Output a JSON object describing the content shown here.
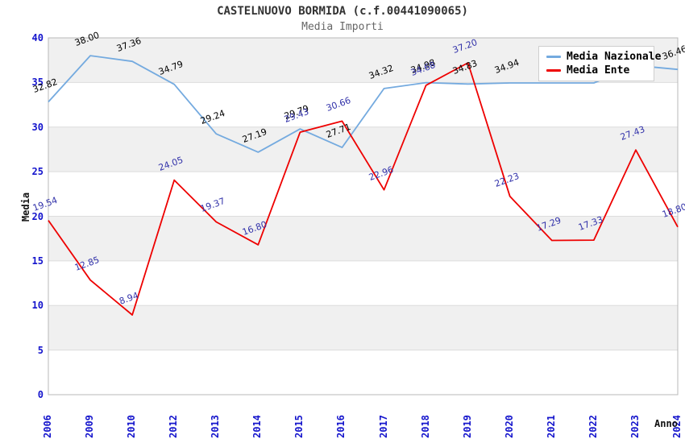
{
  "header": {
    "title": "CASTELNUOVO BORMIDA (c.f.00441090065)",
    "subtitle": "Media Importi"
  },
  "legend": {
    "items": [
      {
        "label": "Media Nazionale",
        "color": "#74aadf"
      },
      {
        "label": "Media Ente",
        "color": "#ee0000"
      }
    ]
  },
  "axes": {
    "y_label": "Media",
    "x_label": "Anno",
    "tick_color": "#1414cc",
    "y_ticks": [
      0,
      5,
      10,
      15,
      20,
      25,
      30,
      35,
      40
    ]
  },
  "colors": {
    "band_gray": "#f0f0f0",
    "band_white": "#ffffff",
    "gridline": "#dcdcdc",
    "plot_border": "#b8b8b8"
  },
  "chart_data": {
    "type": "line",
    "title": "CASTELNUOVO BORMIDA (c.f.00441090065)",
    "subtitle": "Media Importi",
    "xlabel": "Anno",
    "ylabel": "Media",
    "ylim": [
      0,
      40
    ],
    "grid": "horizontal-bands",
    "legend_position": "top-right",
    "categories": [
      "2006",
      "2009",
      "2010",
      "2012",
      "2013",
      "2014",
      "2015",
      "2016",
      "2017",
      "2018",
      "2019",
      "2020",
      "2021",
      "2022",
      "2023",
      "2024"
    ],
    "series": [
      {
        "name": "Media Nazionale",
        "color": "#74aadf",
        "label_color": "#000000",
        "values": [
          32.82,
          38.0,
          37.36,
          34.79,
          29.24,
          27.19,
          29.79,
          27.71,
          34.32,
          34.98,
          34.83,
          34.94,
          34.94,
          34.94,
          36.9,
          36.46
        ],
        "labels": [
          "32.82",
          "38.00",
          "37.36",
          "34.79",
          "29.24",
          "27.19",
          "29.79",
          "27.71",
          "34.32",
          "34.98",
          "34.83",
          "34.94",
          null,
          null,
          null,
          "36.46"
        ]
      },
      {
        "name": "Media Ente",
        "color": "#ee0000",
        "label_color": "#3333aa",
        "values": [
          19.54,
          12.85,
          8.94,
          24.05,
          19.37,
          16.8,
          29.43,
          30.66,
          22.96,
          34.68,
          37.2,
          22.23,
          17.29,
          17.33,
          27.43,
          18.8
        ],
        "labels": [
          "19.54",
          "12.85",
          "8.94",
          "24.05",
          "19.37",
          "16.80",
          "29.43",
          "30.66",
          "22.96",
          "34.68",
          "37.20",
          "22.23",
          "17.29",
          "17.33",
          "27.43",
          "18.80"
        ]
      }
    ]
  }
}
